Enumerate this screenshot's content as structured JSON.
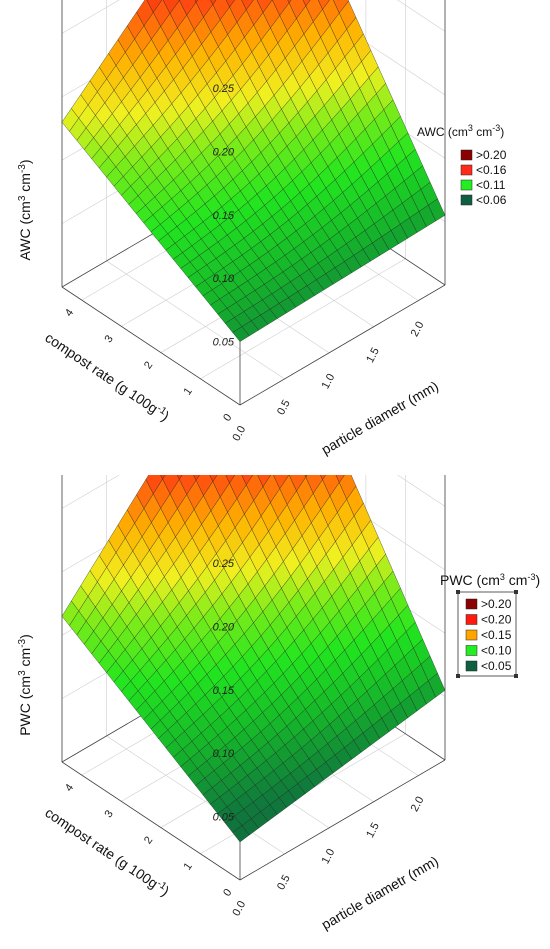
{
  "chart_data": [
    {
      "type": "surface3d",
      "zlabel_main": "AWC (cm",
      "zlabel_sup1": "3",
      "zlabel_mid": " cm",
      "zlabel_sup2": "-3",
      "zlabel_end": ")",
      "xlabel_main": "compost rate (g 100g",
      "xlabel_sup": "-1",
      "xlabel_end": ")",
      "ylabel": "particle diametr (mm)",
      "z_ticks": [
        "0.05",
        "0.10",
        "0.15",
        "0.20",
        "0.25"
      ],
      "x_ticks": [
        "0",
        "1",
        "2",
        "3",
        "4"
      ],
      "y_ticks": [
        "0.0",
        "0.5",
        "1.0",
        "1.5",
        "2.0"
      ],
      "x_range": [
        0,
        4.5
      ],
      "y_range": [
        0,
        2.3
      ],
      "z_range": [
        0,
        0.28
      ],
      "corners": {
        "x0_y0": 0.05,
        "x4_5_y0": 0.13,
        "x0_y2_3": 0.055,
        "x4_5_y2_3": 0.27
      },
      "legend": {
        "title_main": "AWC (cm",
        "title_sup1": "3",
        "title_mid": " cm",
        "title_sup2": "-3",
        "title_end": ")",
        "entries": [
          {
            "label": ">0.20",
            "color": "#8b0000"
          },
          {
            "label": "<0.16",
            "color": "#ff2a1a"
          },
          {
            "label": "<0.11",
            "color": "#22ee22"
          },
          {
            "label": "<0.06",
            "color": "#0f6040"
          }
        ]
      }
    },
    {
      "type": "surface3d",
      "zlabel_main": "PWC (cm",
      "zlabel_sup1": "3",
      "zlabel_mid": " cm",
      "zlabel_sup2": "-3",
      "zlabel_end": ")",
      "xlabel_main": "compost rate (g 100g",
      "xlabel_sup": "-1",
      "xlabel_end": ")",
      "ylabel": "particle diametr (mm)",
      "z_ticks": [
        "0.05",
        "0.10",
        "0.15",
        "0.20",
        "0.25"
      ],
      "x_ticks": [
        "0",
        "1",
        "2",
        "3",
        "4"
      ],
      "y_ticks": [
        "0.0",
        "0.5",
        "1.0",
        "1.5",
        "2.0"
      ],
      "x_range": [
        0,
        4.5
      ],
      "y_range": [
        0,
        2.3
      ],
      "z_range": [
        0,
        0.28
      ],
      "corners": {
        "x0_y0": 0.03,
        "x4_5_y0": 0.115,
        "x0_y2_3": 0.055,
        "x4_5_y2_3": 0.28
      },
      "legend": {
        "title_main": "PWC (cm",
        "title_sup1": "3",
        "title_mid": " cm",
        "title_sup2": "-3",
        "title_end": ")",
        "entries": [
          {
            "label": ">0.20",
            "color": "#8b0000"
          },
          {
            "label": "<0.20",
            "color": "#ff1a10"
          },
          {
            "label": "<0.15",
            "color": "#ffa500"
          },
          {
            "label": "<0.10",
            "color": "#22ee22"
          },
          {
            "label": "<0.05",
            "color": "#0f6040"
          }
        ]
      }
    }
  ]
}
